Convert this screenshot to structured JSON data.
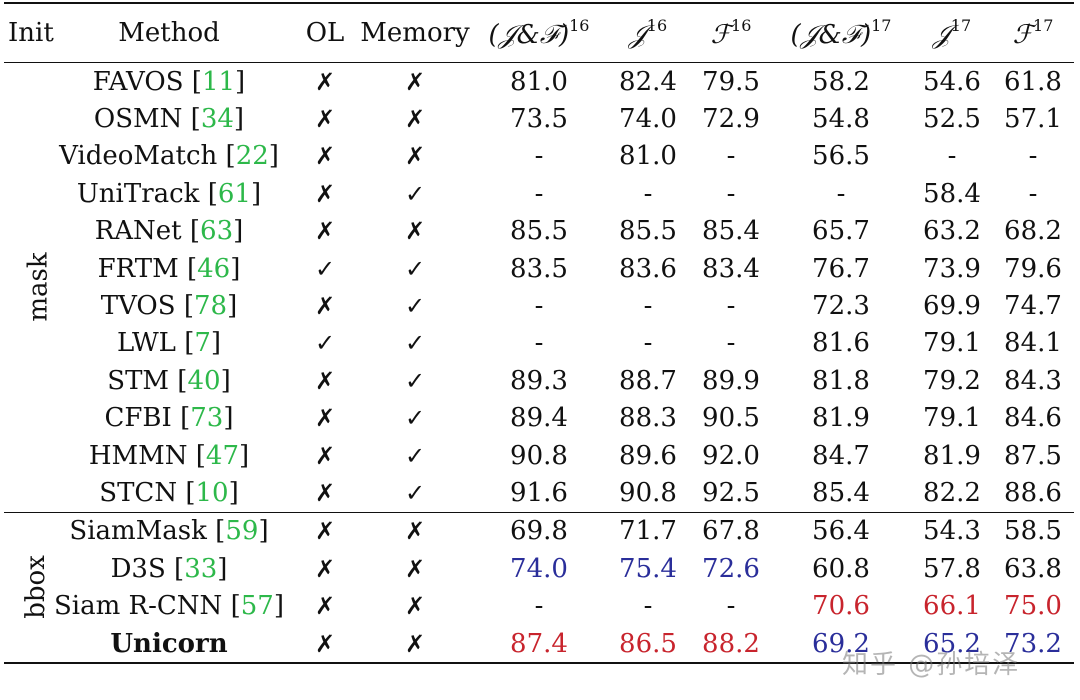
{
  "header": {
    "init": "Init",
    "method": "Method",
    "ol": "OL",
    "memory": "Memory",
    "jf16": "(𝒥&ℱ)",
    "jf16_sup": "16",
    "j16": "𝒥",
    "j16_sup": "16",
    "f16": "ℱ",
    "f16_sup": "16",
    "jf17": "(𝒥&ℱ)",
    "jf17_sup": "17",
    "j17": "𝒥",
    "j17_sup": "17",
    "f17": "ℱ",
    "f17_sup": "17"
  },
  "groups": [
    {
      "label": "mask",
      "rows": [
        {
          "method": "FAVOS",
          "cite": "11",
          "ol": "✗",
          "memory": "✗",
          "jf16": "81.0",
          "j16": "82.4",
          "f16": "79.5",
          "jf17": "58.2",
          "j17": "54.6",
          "f17": "61.8"
        },
        {
          "method": "OSMN",
          "cite": "34",
          "ol": "✗",
          "memory": "✗",
          "jf16": "73.5",
          "j16": "74.0",
          "f16": "72.9",
          "jf17": "54.8",
          "j17": "52.5",
          "f17": "57.1"
        },
        {
          "method": "VideoMatch",
          "cite": "22",
          "ol": "✗",
          "memory": "✗",
          "jf16": "-",
          "j16": "81.0",
          "f16": "-",
          "jf17": "56.5",
          "j17": "-",
          "f17": "-"
        },
        {
          "method": "UniTrack",
          "cite": "61",
          "ol": "✗",
          "memory": "✓",
          "jf16": "-",
          "j16": "-",
          "f16": "-",
          "jf17": "-",
          "j17": "58.4",
          "f17": "-"
        },
        {
          "method": "RANet",
          "cite": "63",
          "ol": "✗",
          "memory": "✗",
          "jf16": "85.5",
          "j16": "85.5",
          "f16": "85.4",
          "jf17": "65.7",
          "j17": "63.2",
          "f17": "68.2"
        },
        {
          "method": "FRTM",
          "cite": "46",
          "ol": "✓",
          "memory": "✓",
          "jf16": "83.5",
          "j16": "83.6",
          "f16": "83.4",
          "jf17": "76.7",
          "j17": "73.9",
          "f17": "79.6"
        },
        {
          "method": "TVOS",
          "cite": "78",
          "ol": "✗",
          "memory": "✓",
          "jf16": "-",
          "j16": "-",
          "f16": "-",
          "jf17": "72.3",
          "j17": "69.9",
          "f17": "74.7"
        },
        {
          "method": "LWL",
          "cite": "7",
          "ol": "✓",
          "memory": "✓",
          "jf16": "-",
          "j16": "-",
          "f16": "-",
          "jf17": "81.6",
          "j17": "79.1",
          "f17": "84.1"
        },
        {
          "method": "STM",
          "cite": "40",
          "ol": "✗",
          "memory": "✓",
          "jf16": "89.3",
          "j16": "88.7",
          "f16": "89.9",
          "jf17": "81.8",
          "j17": "79.2",
          "f17": "84.3"
        },
        {
          "method": "CFBI",
          "cite": "73",
          "ol": "✗",
          "memory": "✓",
          "jf16": "89.4",
          "j16": "88.3",
          "f16": "90.5",
          "jf17": "81.9",
          "j17": "79.1",
          "f17": "84.6"
        },
        {
          "method": "HMMN",
          "cite": "47",
          "ol": "✗",
          "memory": "✓",
          "jf16": "90.8",
          "j16": "89.6",
          "f16": "92.0",
          "jf17": "84.7",
          "j17": "81.9",
          "f17": "87.5"
        },
        {
          "method": "STCN",
          "cite": "10",
          "ol": "✗",
          "memory": "✓",
          "jf16": "91.6",
          "j16": "90.8",
          "f16": "92.5",
          "jf17": "85.4",
          "j17": "82.2",
          "f17": "88.6"
        }
      ]
    },
    {
      "label": "bbox",
      "rows": [
        {
          "method": "SiamMask",
          "cite": "59",
          "ol": "✗",
          "memory": "✗",
          "jf16": "69.8",
          "j16": "71.7",
          "f16": "67.8",
          "jf17": "56.4",
          "j17": "54.3",
          "f17": "58.5"
        },
        {
          "method": "D3S",
          "cite": "33",
          "ol": "✗",
          "memory": "✗",
          "jf16": "74.0",
          "j16": "75.4",
          "f16": "72.6",
          "jf17": "60.8",
          "j17": "57.8",
          "f17": "63.8"
        },
        {
          "method": "Siam R-CNN",
          "cite": "57",
          "ol": "✗",
          "memory": "✗",
          "jf16": "-",
          "j16": "-",
          "f16": "-",
          "jf17": "70.6",
          "j17": "66.1",
          "f17": "75.0"
        },
        {
          "method": "Unicorn",
          "cite": "",
          "ol": "✗",
          "memory": "✗",
          "jf16": "87.4",
          "j16": "86.5",
          "f16": "88.2",
          "jf17": "69.2",
          "j17": "65.2",
          "f17": "73.2"
        }
      ]
    }
  ],
  "watermark": "知乎 @孙培泽",
  "colors": {
    "cite": "#2db84a",
    "best": "#c8242d",
    "second": "#2a2e9a"
  }
}
